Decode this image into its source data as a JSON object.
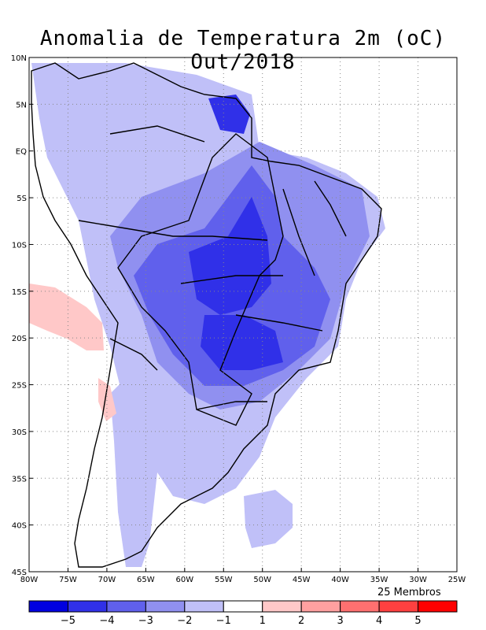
{
  "title": "Anomalia de Temperatura 2m (oC) Out/2018",
  "members_label": "25 Membros",
  "map": {
    "lon_range": [
      -80,
      -25
    ],
    "lat_range": [
      -45,
      10
    ],
    "x_ticks": [
      "80W",
      "75W",
      "70W",
      "65W",
      "60W",
      "55W",
      "50W",
      "45W",
      "40W",
      "35W",
      "30W",
      "25W"
    ],
    "y_ticks": [
      "10N",
      "5N",
      "EQ",
      "5S",
      "10S",
      "15S",
      "20S",
      "25S",
      "30S",
      "35S",
      "40S",
      "45S"
    ],
    "grid": "dotted"
  },
  "colorbar": {
    "colors": [
      "#0000e0",
      "#3030e8",
      "#6060ec",
      "#9090f0",
      "#c0c0f8",
      "#ffffff",
      "#ffc8c8",
      "#ffa0a0",
      "#ff7070",
      "#ff4040",
      "#ff0000"
    ],
    "labels": [
      "-5",
      "-4",
      "-3",
      "-2",
      "-1",
      "1",
      "2",
      "3",
      "4",
      "5"
    ]
  }
}
